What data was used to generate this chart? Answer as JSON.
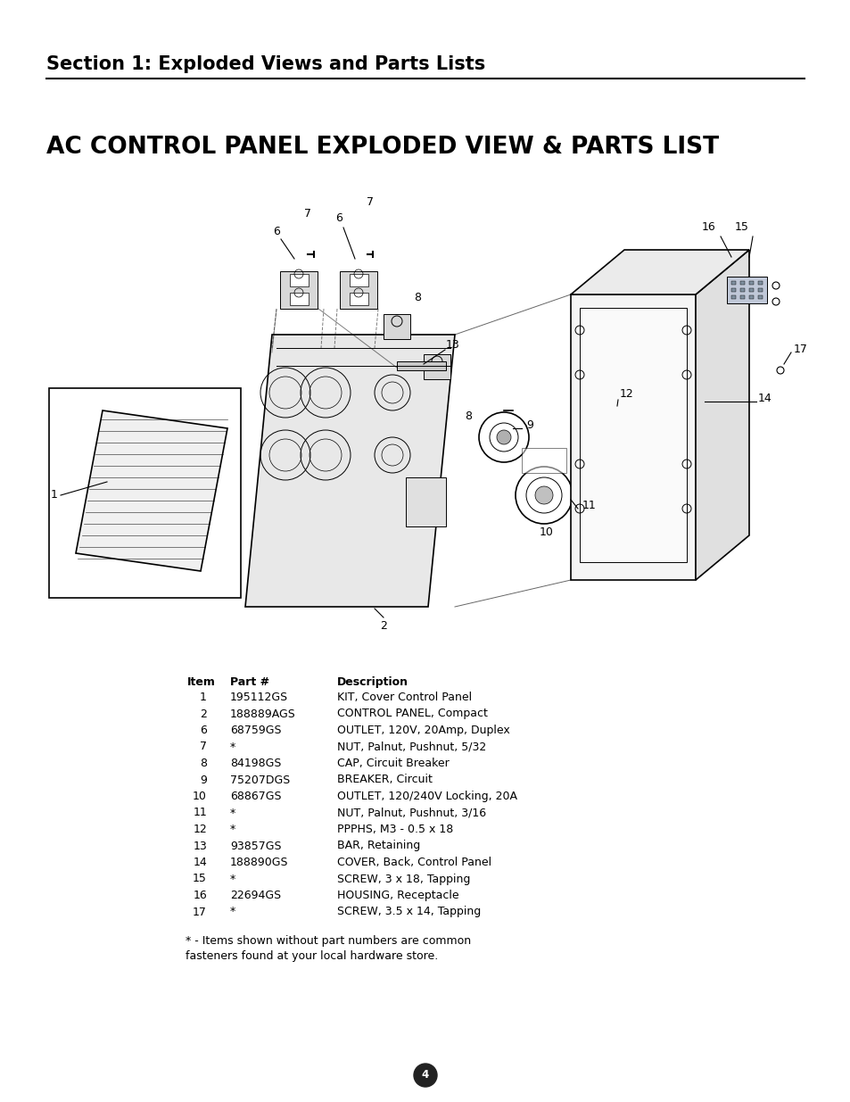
{
  "section_title": "Section 1: Exploded Views and Parts Lists",
  "page_title": "AC CONTROL PANEL EXPLODED VIEW & PARTS LIST",
  "parts": [
    {
      "item": "1",
      "part": "195112GS",
      "description": "KIT, Cover Control Panel"
    },
    {
      "item": "2",
      "part": "188889AGS",
      "description": "CONTROL PANEL, Compact"
    },
    {
      "item": "6",
      "part": "68759GS",
      "description": "OUTLET, 120V, 20Amp, Duplex"
    },
    {
      "item": "7",
      "part": "*",
      "description": "NUT, Palnut, Pushnut, 5/32"
    },
    {
      "item": "8",
      "part": "84198GS",
      "description": "CAP, Circuit Breaker"
    },
    {
      "item": "9",
      "part": "75207DGS",
      "description": "BREAKER, Circuit"
    },
    {
      "item": "10",
      "part": "68867GS",
      "description": "OUTLET, 120/240V Locking, 20A"
    },
    {
      "item": "11",
      "part": "*",
      "description": "NUT, Palnut, Pushnut, 3/16"
    },
    {
      "item": "12",
      "part": "*",
      "description": "PPPHS, M3 - 0.5 x 18"
    },
    {
      "item": "13",
      "part": "93857GS",
      "description": "BAR, Retaining"
    },
    {
      "item": "14",
      "part": "188890GS",
      "description": "COVER, Back, Control Panel"
    },
    {
      "item": "15",
      "part": "*",
      "description": "SCREW, 3 x 18, Tapping"
    },
    {
      "item": "16",
      "part": "22694GS",
      "description": "HOUSING, Receptacle"
    },
    {
      "item": "17",
      "part": "*",
      "description": "SCREW, 3.5 x 14, Tapping"
    }
  ],
  "footnote1": "* - Items shown without part numbers are common",
  "footnote2": "fasteners found at your local hardware store.",
  "page_number": "4",
  "bg_color": "#ffffff",
  "text_color": "#000000",
  "section_title_size": 15,
  "page_title_size": 19,
  "table_header_size": 9,
  "table_body_size": 9,
  "footnote_size": 9
}
